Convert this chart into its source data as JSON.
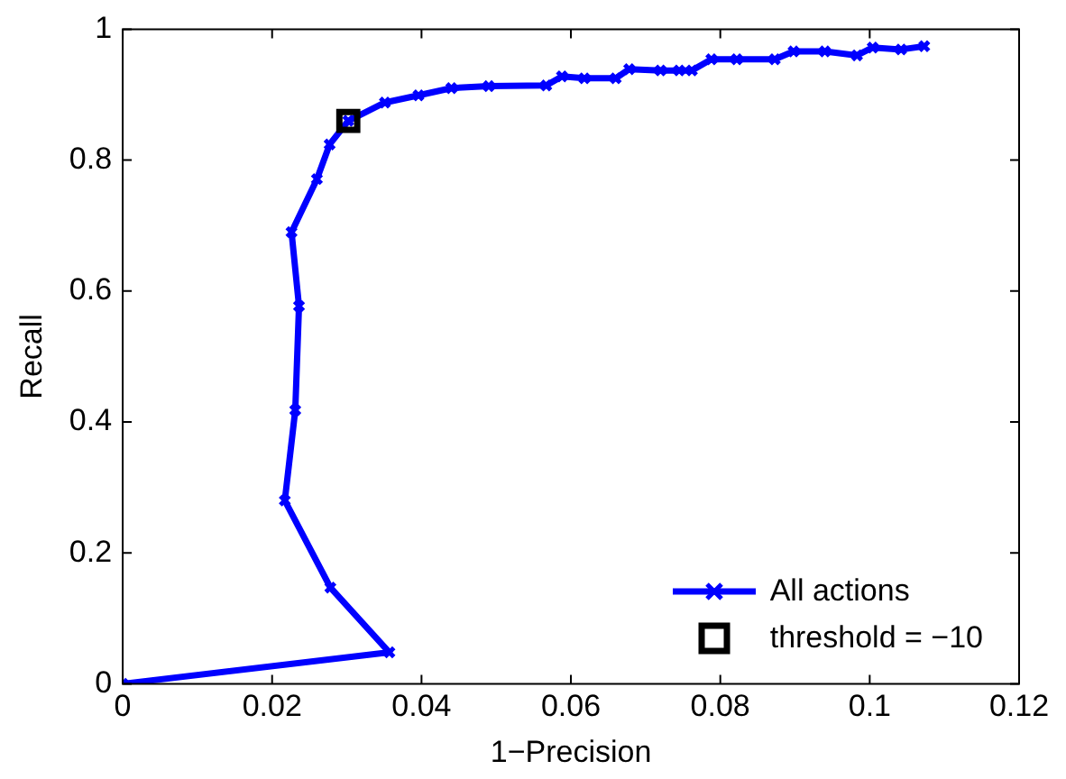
{
  "chart_data": {
    "type": "line",
    "xlabel": "1−Precision",
    "ylabel": "Recall",
    "xlim": [
      0,
      0.12
    ],
    "xticks": [
      0,
      0.02,
      0.04,
      0.06,
      0.08,
      0.1,
      0.12
    ],
    "ylim": [
      0,
      1
    ],
    "yticks": [
      0,
      0.2,
      0.4,
      0.6,
      0.8,
      1
    ],
    "grid": false,
    "legend": "bottom right",
    "marker": "cross",
    "line_style": "solid",
    "series": [
      {
        "name": "All actions",
        "color": "#0000ff",
        "x": [
          0,
          0.0357,
          0.0278,
          0.0217,
          0.0231,
          0.0236,
          0.0226,
          0.026,
          0.0277,
          0.0302,
          0.0351,
          0.0396,
          0.044,
          0.049,
          0.0567,
          0.0588,
          0.0618,
          0.066,
          0.0678,
          0.072,
          0.0745,
          0.0762,
          0.0788,
          0.0822,
          0.0873,
          0.0898,
          0.094,
          0.0983,
          0.1004,
          0.1042,
          0.1073
        ],
        "values": [
          0,
          0.048,
          0.147,
          0.28,
          0.418,
          0.577,
          0.69,
          0.771,
          0.824,
          0.86,
          0.888,
          0.899,
          0.91,
          0.913,
          0.914,
          0.928,
          0.925,
          0.925,
          0.939,
          0.937,
          0.937,
          0.937,
          0.954,
          0.954,
          0.954,
          0.966,
          0.966,
          0.96,
          0.972,
          0.969,
          0.974
        ]
      },
      {
        "name": "threshold = −10",
        "color": "#000000",
        "type": "scatter",
        "marker": "square",
        "x": [
          0.0302
        ],
        "values": [
          0.86
        ]
      }
    ]
  }
}
